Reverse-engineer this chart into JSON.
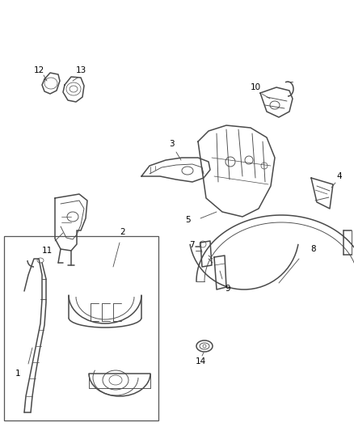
{
  "background_color": "#ffffff",
  "line_color": "#4a4a4a",
  "figure_width": 4.38,
  "figure_height": 5.33,
  "dpi": 100,
  "label_fontsize": 7.5,
  "lw_main": 1.1,
  "lw_thin": 0.65,
  "lw_detail": 0.5
}
